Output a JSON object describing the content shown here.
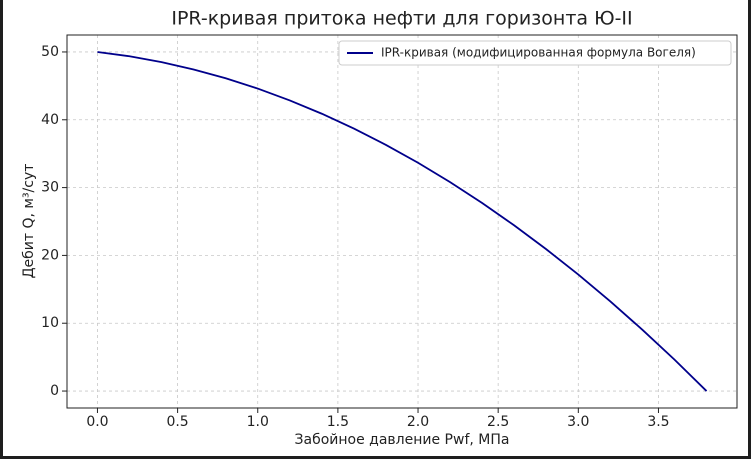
{
  "chart_data": {
    "type": "line",
    "title": "IPR-кривая притока нефти для горизонта Ю-II",
    "x_label": "Забойное давление Pwf, МПа",
    "y_label": "Дебит Q, м³/сут",
    "x": [
      0,
      0.2,
      0.4,
      0.6,
      0.8,
      1.0,
      1.2,
      1.4,
      1.6,
      1.8,
      2.0,
      2.2,
      2.4,
      2.6,
      2.8,
      3.0,
      3.2,
      3.4,
      3.6,
      3.8
    ],
    "series": [
      {
        "name": "IPR-кривая (модифицированная формула Вогеля)",
        "color": "#00008b",
        "values": [
          50,
          49.36,
          48.5,
          47.42,
          46.12,
          44.6,
          42.85,
          40.89,
          38.7,
          36.29,
          33.66,
          30.8,
          27.73,
          24.43,
          20.91,
          17.17,
          13.21,
          9.03,
          4.63,
          0
        ]
      }
    ],
    "xlim": [
      -0.19,
      3.99
    ],
    "ylim": [
      -2.5,
      52.5
    ],
    "xticks": [
      {
        "value": 0,
        "label": "0.0"
      },
      0.5,
      {
        "value": 1,
        "label": "1.0"
      },
      1.5,
      {
        "value": 2,
        "label": "2.0"
      },
      2.5,
      {
        "value": 3,
        "label": "3.0"
      },
      3.5
    ],
    "yticks": [
      0,
      10,
      20,
      30,
      40,
      50
    ],
    "grid": true,
    "legend": "upper right"
  }
}
